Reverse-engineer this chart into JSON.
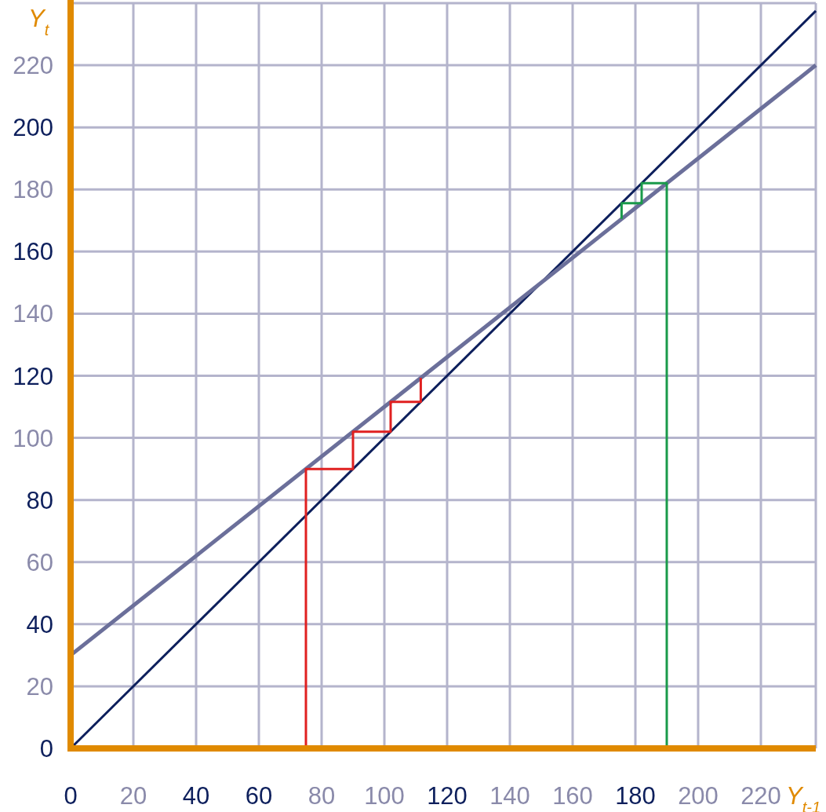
{
  "chart_data": {
    "type": "line",
    "xlabel": "Y$_{t-1}$",
    "ylabel": "Y$_{t}$",
    "xlim": [
      0,
      237.5
    ],
    "ylim": [
      0,
      240
    ],
    "xticks": [
      0,
      20,
      40,
      60,
      80,
      100,
      120,
      140,
      160,
      180,
      200,
      220
    ],
    "yticks": [
      0,
      20,
      40,
      60,
      80,
      100,
      120,
      140,
      160,
      180,
      200,
      220
    ],
    "grid": true,
    "marker": "none",
    "line_style": "solid",
    "series": [
      {
        "color": "#0d1f5c",
        "x": [
          0,
          237.5
        ],
        "values": [
          0,
          237.5
        ]
      },
      {
        "color": "#6b6f9a",
        "x": [
          0,
          237.5
        ],
        "values": [
          30,
          220
        ]
      },
      {
        "color": "#e02020",
        "x": [
          75,
          75,
          90,
          90,
          102,
          102,
          111.6,
          111.6
        ],
        "values": [
          0,
          90,
          90,
          102,
          102,
          111.6,
          111.6,
          119.3
        ]
      },
      {
        "color": "#1a9a4a",
        "x": [
          190,
          190,
          182,
          182,
          175.6,
          175.6
        ],
        "values": [
          0,
          182,
          182,
          175.6,
          175.6,
          170.5
        ]
      }
    ]
  }
}
